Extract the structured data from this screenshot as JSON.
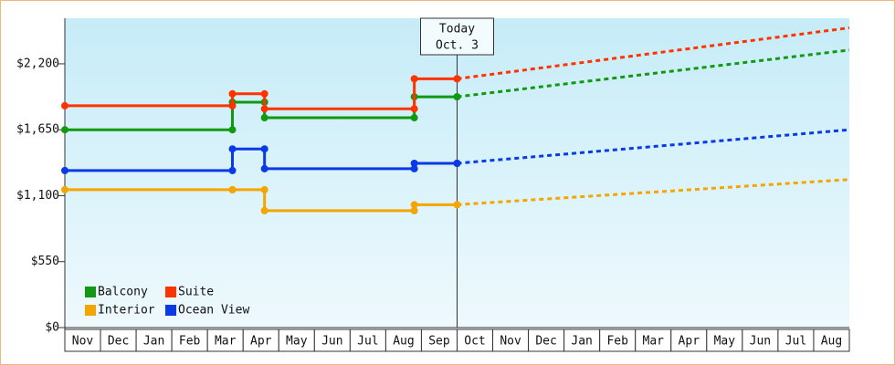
{
  "chart_data": {
    "type": "step-line",
    "categories": [
      "Nov",
      "Dec",
      "Jan",
      "Feb",
      "Mar",
      "Apr",
      "May",
      "Jun",
      "Jul",
      "Aug",
      "Sep",
      "Oct",
      "Nov",
      "Dec",
      "Jan",
      "Feb",
      "Mar",
      "Apr",
      "May",
      "Jun",
      "Jul",
      "Aug"
    ],
    "xlim": [
      0,
      22
    ],
    "ylim": [
      0,
      2580
    ],
    "yticks": [
      {
        "value": 0,
        "label": "$0"
      },
      {
        "value": 550,
        "label": "$550"
      },
      {
        "value": 1100,
        "label": "$1,100"
      },
      {
        "value": 1650,
        "label": "$1,650"
      },
      {
        "value": 2200,
        "label": "$2,200"
      }
    ],
    "annotation": {
      "x": 11,
      "lines": [
        "Today",
        "Oct. 3"
      ]
    },
    "forecast_x": [
      11,
      22
    ],
    "legend": "lower left",
    "series": [
      {
        "name": "Balcony",
        "color": "#119911",
        "x": [
          0,
          4.7,
          5.6,
          9.8,
          11
        ],
        "values": [
          1650,
          1880,
          1750,
          1925,
          1925
        ],
        "forecast": [
          1925,
          2315
        ]
      },
      {
        "name": "Suite",
        "color": "#ff3300",
        "x": [
          0,
          4.7,
          5.6,
          9.8,
          11
        ],
        "values": [
          1850,
          1950,
          1825,
          2075,
          2075
        ],
        "forecast": [
          2075,
          2500
        ]
      },
      {
        "name": "Interior",
        "color": "#f5a500",
        "x": [
          0,
          4.7,
          5.6,
          9.8,
          11
        ],
        "values": [
          1150,
          1150,
          975,
          1025,
          1025
        ],
        "forecast": [
          1025,
          1235
        ]
      },
      {
        "name": "Ocean View",
        "color": "#0a3ae8",
        "x": [
          0,
          4.7,
          5.6,
          9.8,
          11
        ],
        "values": [
          1310,
          1490,
          1325,
          1370,
          1370
        ],
        "forecast": [
          1370,
          1650
        ]
      }
    ]
  }
}
